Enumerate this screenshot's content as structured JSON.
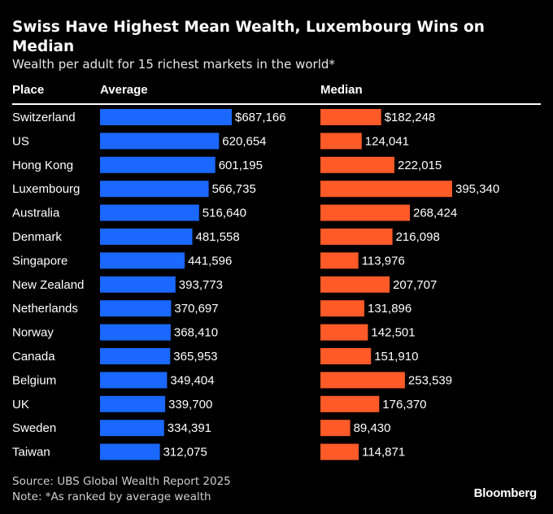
{
  "title": "Swiss Have Highest Mean Wealth, Luxembourg Wins on Median",
  "subtitle": "Wealth per adult for 15 richest markets in the world*",
  "source": "Source: UBS Global Wealth Report 2025",
  "note": "Note: *As ranked by average wealth",
  "logo": "Bloomberg",
  "colors": {
    "average": "#1a68ff",
    "median": "#ff5a28",
    "background": "#000000"
  },
  "chart_data": {
    "type": "bar",
    "title": "Swiss Have Highest Mean Wealth, Luxembourg Wins on Median",
    "subtitle": "Wealth per adult for 15 richest markets in the world*",
    "category_header": "Place",
    "categories": [
      "Switzerland",
      "US",
      "Hong Kong",
      "Luxembourg",
      "Australia",
      "Denmark",
      "Singapore",
      "New Zealand",
      "Netherlands",
      "Norway",
      "Canada",
      "Belgium",
      "UK",
      "Sweden",
      "Taiwan"
    ],
    "series": [
      {
        "name": "Average",
        "values": [
          687166,
          620654,
          601195,
          566735,
          516640,
          481558,
          441596,
          393773,
          370697,
          368410,
          365953,
          349404,
          339700,
          334391,
          312075
        ],
        "labels": [
          "$687,166",
          "620,654",
          "601,195",
          "566,735",
          "516,640",
          "481,558",
          "441,596",
          "393,773",
          "370,697",
          "368,410",
          "365,953",
          "349,404",
          "339,700",
          "334,391",
          "312,075"
        ],
        "max": 687166
      },
      {
        "name": "Median",
        "values": [
          182248,
          124041,
          222015,
          395340,
          268424,
          216098,
          113976,
          207707,
          131896,
          142501,
          151910,
          253539,
          176370,
          89430,
          114871
        ],
        "labels": [
          "$182,248",
          "124,041",
          "222,015",
          "395,340",
          "268,424",
          "216,098",
          "113,976",
          "207,707",
          "131,896",
          "142,501",
          "151,910",
          "253,539",
          "176,370",
          "89,430",
          "114,871"
        ],
        "max": 395340
      }
    ]
  }
}
